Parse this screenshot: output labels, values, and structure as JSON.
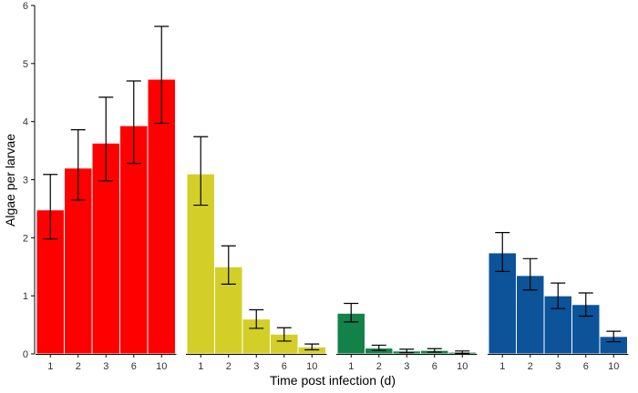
{
  "chart_data": {
    "type": "bar",
    "xlabel": "Time post infection (d)",
    "ylabel": "Algae per larvae",
    "ylim": [
      0,
      6
    ],
    "yticks": [
      0,
      1,
      2,
      3,
      4,
      5,
      6
    ],
    "categories": [
      "1",
      "2",
      "3",
      "6",
      "10"
    ],
    "error_bars": true,
    "groups": [
      {
        "color": "#ff0000",
        "values": [
          2.48,
          3.2,
          3.63,
          3.93,
          4.73
        ],
        "err_low": [
          1.98,
          2.65,
          2.98,
          3.28,
          3.97
        ],
        "err_high": [
          3.09,
          3.86,
          4.42,
          4.7,
          5.64
        ]
      },
      {
        "color": "#d4cf28",
        "values": [
          3.1,
          1.5,
          0.6,
          0.34,
          0.12
        ],
        "err_low": [
          2.56,
          1.2,
          0.44,
          0.22,
          0.07
        ],
        "err_high": [
          3.74,
          1.86,
          0.76,
          0.45,
          0.17
        ]
      },
      {
        "color": "#138248",
        "values": [
          0.7,
          0.1,
          0.05,
          0.06,
          0.03
        ],
        "err_low": [
          0.55,
          0.06,
          0.02,
          0.03,
          0.01
        ],
        "err_high": [
          0.87,
          0.15,
          0.08,
          0.09,
          0.05
        ]
      },
      {
        "color": "#0c5399",
        "values": [
          1.74,
          1.35,
          1.0,
          0.85,
          0.3
        ],
        "err_low": [
          1.42,
          1.1,
          0.78,
          0.65,
          0.21
        ],
        "err_high": [
          2.09,
          1.64,
          1.22,
          1.05,
          0.39
        ]
      }
    ]
  }
}
